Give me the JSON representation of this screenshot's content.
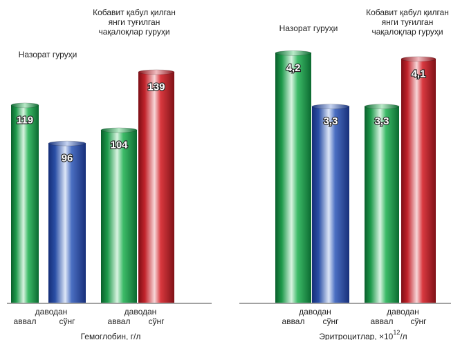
{
  "chart_data": [
    {
      "type": "bar",
      "xlabel": "Гемоглобин, г/л",
      "groups": [
        {
          "name": "Назорат гуруҳи",
          "title_lines": [
            "Назорат гуруҳи"
          ],
          "category_top": "даводан",
          "bars": [
            {
              "label": "аввал",
              "value": 119,
              "value_label": "119",
              "color": "green"
            },
            {
              "label": "сўнг",
              "value": 96,
              "value_label": "96",
              "color": "blue"
            }
          ]
        },
        {
          "name": "Кобавит қабул қилган янги туғилган чақалоқлар гуруҳи",
          "title_lines": [
            "Кобавит қабул қилган",
            "янги туғилган",
            "чақалоқлар гуруҳи"
          ],
          "category_top": "даводан",
          "bars": [
            {
              "label": "аввал",
              "value": 104,
              "value_label": "104",
              "color": "green"
            },
            {
              "label": "сўнг",
              "value": 139,
              "value_label": "139",
              "color": "red"
            }
          ]
        }
      ]
    },
    {
      "type": "bar",
      "xlabel": "Эритроцитлар, ×10",
      "xlabel_sup": "12",
      "xlabel_suffix": "/л",
      "groups": [
        {
          "name": "Назорат гуруҳи",
          "title_lines": [
            "Назорат гуруҳи"
          ],
          "category_top": "даводан",
          "bars": [
            {
              "label": "аввал",
              "value": 4.2,
              "value_label": "4,2",
              "color": "green"
            },
            {
              "label": "сўнг",
              "value": 3.3,
              "value_label": "3,3",
              "color": "blue"
            }
          ]
        },
        {
          "name": "Кобавит қабул қилган янги туғилган чақалоқлар гуруҳи",
          "title_lines": [
            "Кобавит қабул қилган",
            "янги туғилган",
            "чақалоқлар гуруҳи"
          ],
          "category_top": "даводан",
          "bars": [
            {
              "label": "аввал",
              "value": 3.3,
              "value_label": "3,3",
              "color": "green"
            },
            {
              "label": "сўнг",
              "value": 4.1,
              "value_label": "4,1",
              "color": "red"
            }
          ]
        }
      ]
    }
  ],
  "colors": {
    "green": "#1f9a4c",
    "blue": "#2b4fa3",
    "red": "#c8262e"
  }
}
